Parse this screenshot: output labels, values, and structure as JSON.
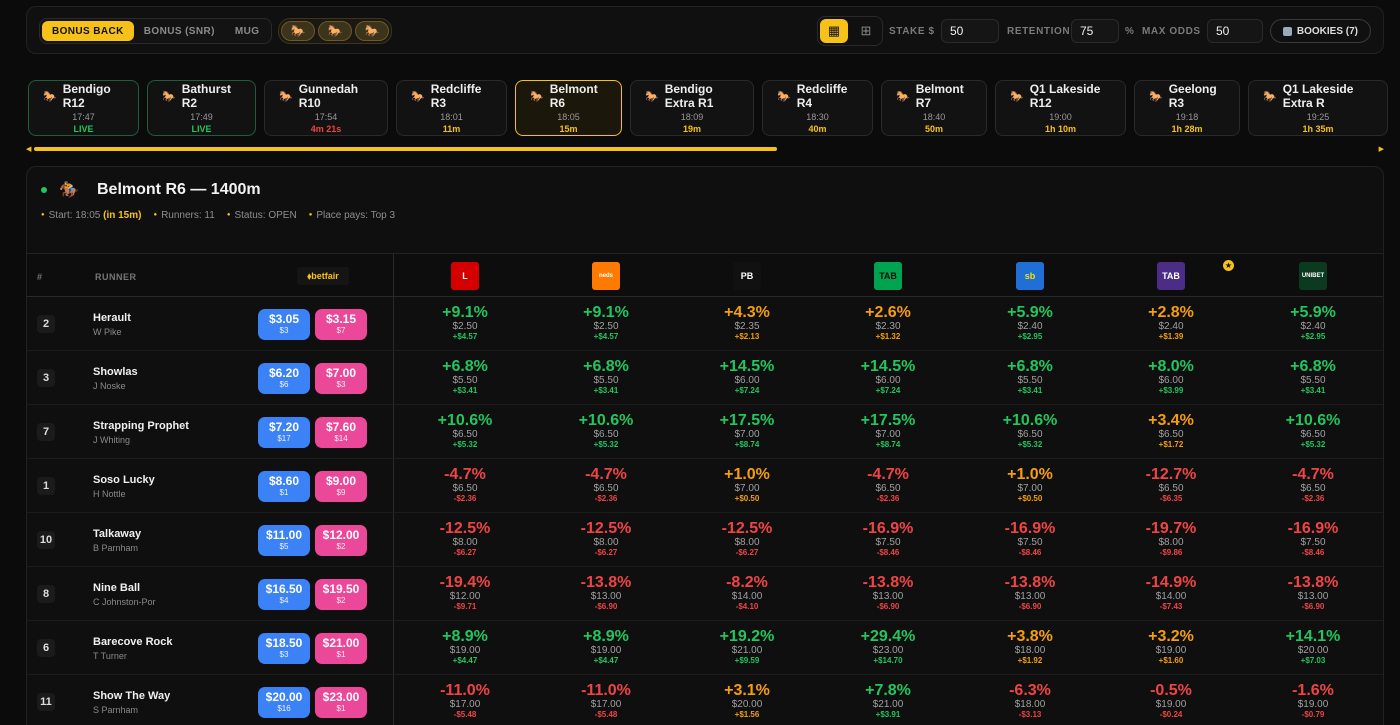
{
  "toolbar": {
    "modes": [
      "BONUS BACK",
      "BONUS (SNR)",
      "MUG"
    ],
    "active_mode": "BONUS BACK",
    "horse_filters": [
      "🐎",
      "🐎",
      "🐎"
    ],
    "stake_label": "STAKE $",
    "stake_value": "50",
    "retention_label": "RETENTION",
    "retention_value": "75",
    "retention_unit": "%",
    "max_odds_label": "MAX ODDS",
    "max_odds_value": "50",
    "bookies_label": "BOOKIES (7)"
  },
  "races": [
    {
      "name": "Bendigo R12",
      "time": "17:47",
      "status": "LIVE",
      "state": "live"
    },
    {
      "name": "Bathurst R2",
      "time": "17:49",
      "status": "LIVE",
      "state": "live"
    },
    {
      "name": "Gunnedah R10",
      "time": "17:54",
      "status": "4m 21s",
      "state": "red"
    },
    {
      "name": "Redcliffe R3",
      "time": "18:01",
      "status": "11m",
      "state": "normal"
    },
    {
      "name": "Belmont R6",
      "time": "18:05",
      "status": "15m",
      "state": "selected"
    },
    {
      "name": "Bendigo Extra R1",
      "time": "18:09",
      "status": "19m",
      "state": "normal"
    },
    {
      "name": "Redcliffe R4",
      "time": "18:30",
      "status": "40m",
      "state": "normal"
    },
    {
      "name": "Belmont R7",
      "time": "18:40",
      "status": "50m",
      "state": "normal"
    },
    {
      "name": "Q1 Lakeside R12",
      "time": "19:00",
      "status": "1h 10m",
      "state": "normal"
    },
    {
      "name": "Geelong R3",
      "time": "19:18",
      "status": "1h 28m",
      "state": "normal"
    },
    {
      "name": "Q1 Lakeside Extra R",
      "time": "19:25",
      "status": "1h 35m",
      "state": "normal"
    }
  ],
  "race": {
    "title": "Belmont R6 — 1400m",
    "start_label": "Start: 18:05",
    "start_countdown": "(in 15m)",
    "runners": "Runners: 11",
    "status": "Status: OPEN",
    "place": "Place pays: Top 3"
  },
  "table": {
    "col_num": "#",
    "col_runner": "RUNNER",
    "exchange": "⬧betfair",
    "bookmakers": [
      {
        "name": "ladbrokes",
        "glyph": "L",
        "bg": "#d40000",
        "fg": "#ffffff"
      },
      {
        "name": "neds",
        "glyph": "neds",
        "bg": "#ff7a00",
        "fg": "#ffffff"
      },
      {
        "name": "pointsbet",
        "glyph": "PB",
        "bg": "#111111",
        "fg": "#ffffff"
      },
      {
        "name": "tab",
        "glyph": "TAB",
        "bg": "#00a34f",
        "fg": "#0b0b0b"
      },
      {
        "name": "sportsbet",
        "glyph": "sb",
        "bg": "#1f6fd6",
        "fg": "#f6e200"
      },
      {
        "name": "tabtouch",
        "glyph": "TAB",
        "bg": "#4b2c86",
        "fg": "#ffffff"
      },
      {
        "name": "unibet",
        "glyph": "UNIBET",
        "bg": "#0c3a21",
        "fg": "#ffffff"
      }
    ],
    "rows": [
      {
        "num": "2",
        "name": "Herault",
        "jockey": "W Pike",
        "back": "$3.05",
        "back_vol": "$3",
        "lay": "$3.15",
        "lay_vol": "$7",
        "cells": [
          [
            "+9.1%",
            "$2.50",
            "+$4.57",
            "g"
          ],
          [
            "+9.1%",
            "$2.50",
            "+$4.57",
            "g"
          ],
          [
            "+4.3%",
            "$2.35",
            "+$2.13",
            "o"
          ],
          [
            "+2.6%",
            "$2.30",
            "+$1.32",
            "o"
          ],
          [
            "+5.9%",
            "$2.40",
            "+$2.95",
            "g"
          ],
          [
            "+2.8%",
            "$2.40",
            "+$1.39",
            "o"
          ],
          [
            "+5.9%",
            "$2.40",
            "+$2.95",
            "g"
          ]
        ]
      },
      {
        "num": "3",
        "name": "Showlas",
        "jockey": "J Noske",
        "back": "$6.20",
        "back_vol": "$6",
        "lay": "$7.00",
        "lay_vol": "$3",
        "cells": [
          [
            "+6.8%",
            "$5.50",
            "+$3.41",
            "g"
          ],
          [
            "+6.8%",
            "$5.50",
            "+$3.41",
            "g"
          ],
          [
            "+14.5%",
            "$6.00",
            "+$7.24",
            "g"
          ],
          [
            "+14.5%",
            "$6.00",
            "+$7.24",
            "g"
          ],
          [
            "+6.8%",
            "$5.50",
            "+$3.41",
            "g"
          ],
          [
            "+8.0%",
            "$6.00",
            "+$3.99",
            "g"
          ],
          [
            "+6.8%",
            "$5.50",
            "+$3.41",
            "g"
          ]
        ]
      },
      {
        "num": "7",
        "name": "Strapping Prophet",
        "jockey": "J Whiting",
        "back": "$7.20",
        "back_vol": "$17",
        "lay": "$7.60",
        "lay_vol": "$14",
        "cells": [
          [
            "+10.6%",
            "$6.50",
            "+$5.32",
            "g"
          ],
          [
            "+10.6%",
            "$6.50",
            "+$5.32",
            "g"
          ],
          [
            "+17.5%",
            "$7.00",
            "+$8.74",
            "g"
          ],
          [
            "+17.5%",
            "$7.00",
            "+$8.74",
            "g"
          ],
          [
            "+10.6%",
            "$6.50",
            "+$5.32",
            "g"
          ],
          [
            "+3.4%",
            "$6.50",
            "+$1.72",
            "o"
          ],
          [
            "+10.6%",
            "$6.50",
            "+$5.32",
            "g"
          ]
        ]
      },
      {
        "num": "1",
        "name": "Soso Lucky",
        "jockey": "H Nottle",
        "back": "$8.60",
        "back_vol": "$1",
        "lay": "$9.00",
        "lay_vol": "$9",
        "cells": [
          [
            "-4.7%",
            "$6.50",
            "-$2.36",
            "r"
          ],
          [
            "-4.7%",
            "$6.50",
            "-$2.36",
            "r"
          ],
          [
            "+1.0%",
            "$7.00",
            "+$0.50",
            "o"
          ],
          [
            "-4.7%",
            "$6.50",
            "-$2.36",
            "r"
          ],
          [
            "+1.0%",
            "$7.00",
            "+$0.50",
            "o"
          ],
          [
            "-12.7%",
            "$6.50",
            "-$6.35",
            "r"
          ],
          [
            "-4.7%",
            "$6.50",
            "-$2.36",
            "r"
          ]
        ]
      },
      {
        "num": "10",
        "name": "Talkaway",
        "jockey": "B Parnham",
        "back": "$11.00",
        "back_vol": "$5",
        "lay": "$12.00",
        "lay_vol": "$2",
        "cells": [
          [
            "-12.5%",
            "$8.00",
            "-$6.27",
            "r"
          ],
          [
            "-12.5%",
            "$8.00",
            "-$6.27",
            "r"
          ],
          [
            "-12.5%",
            "$8.00",
            "-$6.27",
            "r"
          ],
          [
            "-16.9%",
            "$7.50",
            "-$8.46",
            "r"
          ],
          [
            "-16.9%",
            "$7.50",
            "-$8.46",
            "r"
          ],
          [
            "-19.7%",
            "$8.00",
            "-$9.86",
            "r"
          ],
          [
            "-16.9%",
            "$7.50",
            "-$8.46",
            "r"
          ]
        ]
      },
      {
        "num": "8",
        "name": "Nine Ball",
        "jockey": "C Johnston-Por",
        "back": "$16.50",
        "back_vol": "$4",
        "lay": "$19.50",
        "lay_vol": "$2",
        "cells": [
          [
            "-19.4%",
            "$12.00",
            "-$9.71",
            "r"
          ],
          [
            "-13.8%",
            "$13.00",
            "-$6.90",
            "r"
          ],
          [
            "-8.2%",
            "$14.00",
            "-$4.10",
            "r"
          ],
          [
            "-13.8%",
            "$13.00",
            "-$6.90",
            "r"
          ],
          [
            "-13.8%",
            "$13.00",
            "-$6.90",
            "r"
          ],
          [
            "-14.9%",
            "$14.00",
            "-$7.43",
            "r"
          ],
          [
            "-13.8%",
            "$13.00",
            "-$6.90",
            "r"
          ]
        ]
      },
      {
        "num": "6",
        "name": "Barecove Rock",
        "jockey": "T Turner",
        "back": "$18.50",
        "back_vol": "$3",
        "lay": "$21.00",
        "lay_vol": "$1",
        "cells": [
          [
            "+8.9%",
            "$19.00",
            "+$4.47",
            "g"
          ],
          [
            "+8.9%",
            "$19.00",
            "+$4.47",
            "g"
          ],
          [
            "+19.2%",
            "$21.00",
            "+$9.59",
            "g"
          ],
          [
            "+29.4%",
            "$23.00",
            "+$14.70",
            "g"
          ],
          [
            "+3.8%",
            "$18.00",
            "+$1.92",
            "o"
          ],
          [
            "+3.2%",
            "$19.00",
            "+$1.60",
            "o"
          ],
          [
            "+14.1%",
            "$20.00",
            "+$7.03",
            "g"
          ]
        ]
      },
      {
        "num": "11",
        "name": "Show The Way",
        "jockey": "S Parnham",
        "back": "$20.00",
        "back_vol": "$16",
        "lay": "$23.00",
        "lay_vol": "$1",
        "cells": [
          [
            "-11.0%",
            "$17.00",
            "-$5.48",
            "r"
          ],
          [
            "-11.0%",
            "$17.00",
            "-$5.48",
            "r"
          ],
          [
            "+3.1%",
            "$20.00",
            "+$1.56",
            "o"
          ],
          [
            "+7.8%",
            "$21.00",
            "+$3.91",
            "g"
          ],
          [
            "-6.3%",
            "$18.00",
            "-$3.13",
            "r"
          ],
          [
            "-0.5%",
            "$19.00",
            "-$0.24",
            "r"
          ],
          [
            "-1.6%",
            "$19.00",
            "-$0.79",
            "r"
          ]
        ]
      }
    ]
  }
}
